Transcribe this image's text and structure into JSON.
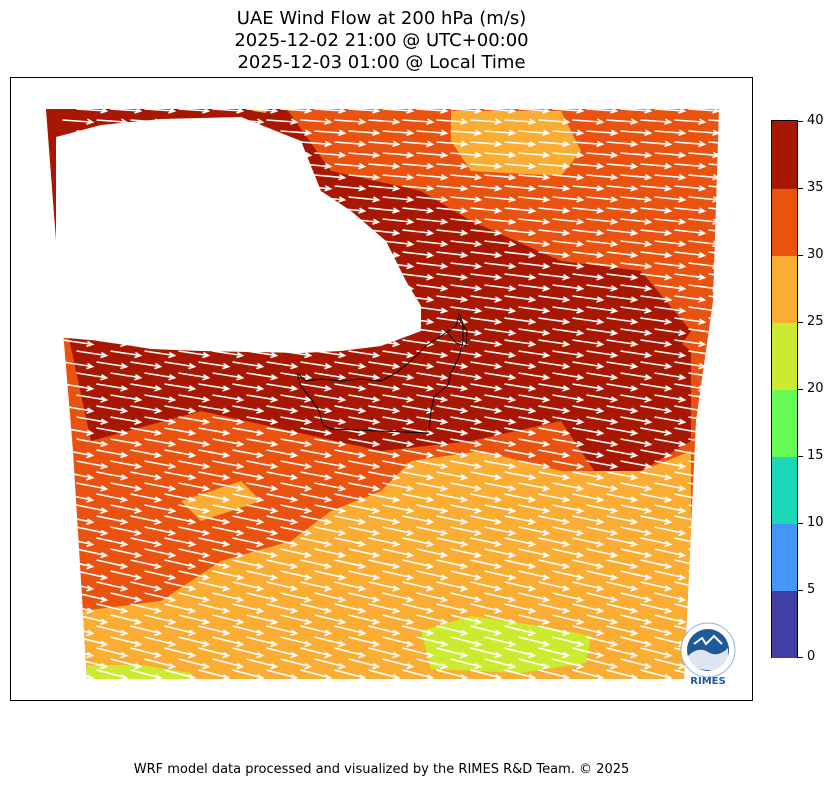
{
  "title": {
    "line1": "UAE Wind Flow at 200 hPa (m/s)",
    "line2": "2025-12-02 21:00 @ UTC+00:00",
    "line3": "2025-12-03 01:00 @ Local Time"
  },
  "colorbar": {
    "ticks": [
      "0",
      "5",
      "10",
      "15",
      "20",
      "25",
      "30",
      "35",
      "40"
    ],
    "bins": [
      {
        "from": 0,
        "to": 5,
        "color": "#3f3fa4"
      },
      {
        "from": 5,
        "to": 10,
        "color": "#4695fa"
      },
      {
        "from": 10,
        "to": 15,
        "color": "#1bd8b8"
      },
      {
        "from": 15,
        "to": 20,
        "color": "#67fc55"
      },
      {
        "from": 20,
        "to": 25,
        "color": "#cbeb31"
      },
      {
        "from": 25,
        "to": 30,
        "color": "#fbac33"
      },
      {
        "from": 30,
        "to": 35,
        "color": "#ea5210"
      },
      {
        "from": 35,
        "to": 40,
        "color": "#a81701"
      }
    ]
  },
  "map": {
    "region": "UAE",
    "level": "200 hPa",
    "field": "wind speed",
    "vector_color": "#ffffff",
    "boundary_color": "#000000"
  },
  "logo": {
    "text": "RIMES"
  },
  "credit": "WRF model data processed and visualized by the RIMES R&D Team. © 2025"
}
